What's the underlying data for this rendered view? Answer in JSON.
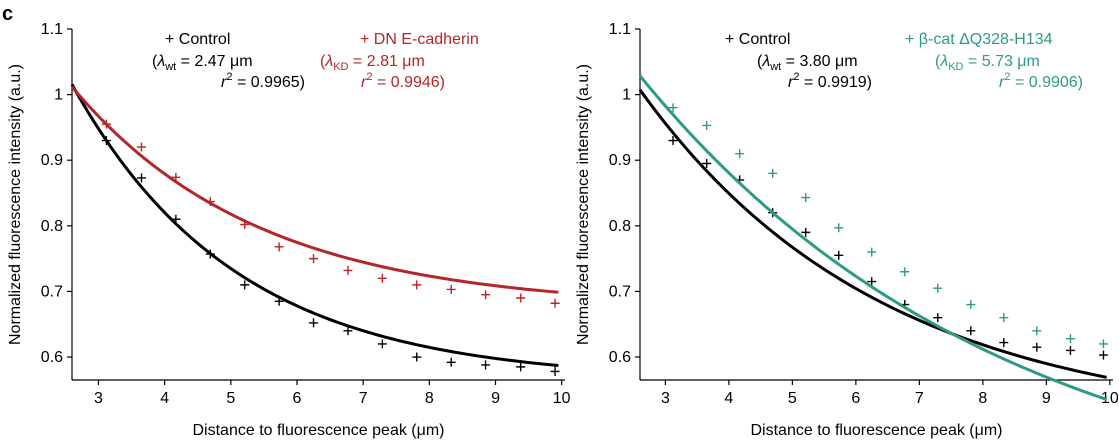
{
  "panel_label": "c",
  "chart_data": [
    {
      "type": "scatter",
      "xlabel_parts": [
        "Distance to fluorescence peak (",
        "μm",
        ")"
      ],
      "ylabel": "Normalized fluorescence intensity (a.u.)",
      "xlim": [
        2.6,
        10.05
      ],
      "ylim": [
        0.565,
        1.1
      ],
      "xticks": [
        3,
        4,
        5,
        6,
        7,
        8,
        9,
        10
      ],
      "yticks": [
        0.6,
        0.7,
        0.8,
        0.9,
        1,
        1.1
      ],
      "ytick_labels": [
        "0.6",
        "0.7",
        "0.8",
        "0.9",
        "1",
        "1.1"
      ],
      "grid": false,
      "legend_position": "top",
      "series": [
        {
          "name": "Control",
          "color": "#000000",
          "marker": "+",
          "lambda_sym": "λ",
          "lambda_sub": "wt",
          "lambda_value": " = 2.47 μm",
          "r2_base": "r",
          "r2_exp": "2",
          "r2_value": " = 0.9965",
          "x": [
            3.12,
            3.65,
            4.17,
            4.69,
            5.21,
            5.73,
            6.25,
            6.77,
            7.29,
            7.81,
            8.33,
            8.85,
            9.38,
            9.9
          ],
          "y": [
            0.93,
            0.873,
            0.81,
            0.757,
            0.71,
            0.685,
            0.652,
            0.64,
            0.62,
            0.6,
            0.592,
            0.588,
            0.585,
            0.578
          ],
          "fit": {
            "A": 0.4516,
            "lambda": 2.47,
            "C": 0.564,
            "x0": 2.6
          }
        },
        {
          "name": "DN E-cadherin",
          "color": "#b5252a",
          "marker": "+",
          "lambda_sym": "λ",
          "lambda_sub": "KD",
          "lambda_value": " = 2.81 μm",
          "r2_base": "r",
          "r2_exp": "2",
          "r2_value": " = 0.9946",
          "x": [
            3.12,
            3.65,
            4.17,
            4.69,
            5.21,
            5.73,
            6.25,
            6.77,
            7.29,
            7.81,
            8.33,
            8.85,
            9.38,
            9.9
          ],
          "y": [
            0.955,
            0.92,
            0.874,
            0.837,
            0.802,
            0.768,
            0.75,
            0.732,
            0.72,
            0.71,
            0.703,
            0.695,
            0.69,
            0.682
          ],
          "fit": {
            "A": 0.3378,
            "lambda": 2.81,
            "C": 0.674,
            "x0": 2.6
          }
        }
      ]
    },
    {
      "type": "scatter",
      "xlabel_parts": [
        "Distance to fluorescence peak (",
        "μm",
        ")"
      ],
      "ylabel": "Normalized fluorescence intensity (a.u.)",
      "xlim": [
        2.6,
        10.05
      ],
      "ylim": [
        0.565,
        1.1
      ],
      "xticks": [
        3,
        4,
        5,
        6,
        7,
        8,
        9,
        10
      ],
      "yticks": [
        0.6,
        0.7,
        0.8,
        0.9,
        1,
        1.1
      ],
      "ytick_labels": [
        "0.6",
        "0.7",
        "0.8",
        "0.9",
        "1",
        "1.1"
      ],
      "grid": false,
      "legend_position": "top",
      "series": [
        {
          "name": "Control",
          "color": "#000000",
          "marker": "+",
          "lambda_sym": "λ",
          "lambda_sub": "wt",
          "lambda_value": " = 3.80 μm",
          "r2_base": "r",
          "r2_exp": "2",
          "r2_value": " = 0.9919",
          "x": [
            3.12,
            3.65,
            4.17,
            4.69,
            5.21,
            5.73,
            6.25,
            6.77,
            7.29,
            7.81,
            8.33,
            8.85,
            9.38,
            9.9
          ],
          "y": [
            0.93,
            0.895,
            0.87,
            0.82,
            0.79,
            0.755,
            0.715,
            0.68,
            0.66,
            0.64,
            0.622,
            0.615,
            0.61,
            0.603
          ],
          "fit": {
            "A": 0.5123,
            "lambda": 3.8,
            "C": 0.495,
            "x0": 2.6
          }
        },
        {
          "name": "β-cat ΔQ328-H134",
          "color": "#2e9a84",
          "marker": "+",
          "lambda_sym": "λ",
          "lambda_sub": "KD",
          "lambda_value": " = 5.73 μm",
          "r2_base": "r",
          "r2_exp": "2",
          "r2_value": " = 0.9906",
          "x": [
            3.12,
            3.65,
            4.17,
            4.69,
            5.21,
            5.73,
            6.25,
            6.77,
            7.29,
            7.81,
            8.33,
            8.85,
            9.38,
            9.9
          ],
          "y": [
            0.98,
            0.953,
            0.91,
            0.88,
            0.843,
            0.797,
            0.76,
            0.73,
            0.705,
            0.68,
            0.66,
            0.64,
            0.628,
            0.62
          ],
          "fit": {
            "A": 0.6826,
            "lambda": 5.73,
            "C": 0.346,
            "x0": 2.6
          }
        }
      ]
    }
  ]
}
